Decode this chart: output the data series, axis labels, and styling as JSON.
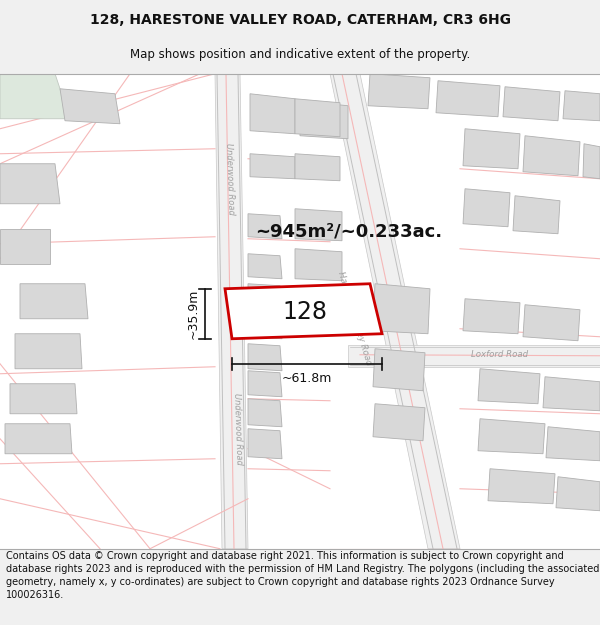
{
  "title": "128, HARESTONE VALLEY ROAD, CATERHAM, CR3 6HG",
  "subtitle": "Map shows position and indicative extent of the property.",
  "footer": "Contains OS data © Crown copyright and database right 2021. This information is subject to Crown copyright and database rights 2023 and is reproduced with the permission of HM Land Registry. The polygons (including the associated geometry, namely x, y co-ordinates) are subject to Crown copyright and database rights 2023 Ordnance Survey 100026316.",
  "area_label": "~945m²/~0.233ac.",
  "width_label": "~61.8m",
  "height_label": "~35.9m",
  "plot_number": "128",
  "bg_color": "#f0f0f0",
  "map_bg": "#ffffff",
  "building_fill": "#d8d8d8",
  "building_edge": "#b0b0b0",
  "road_fill": "#ffffff",
  "road_line_color": "#f5b8b8",
  "road_gray_fill": "#e8e8e8",
  "road_gray_edge": "#c8c8c8",
  "property_color": "#cc0000",
  "road_text_color": "#a0a0a0",
  "title_fontsize": 10,
  "subtitle_fontsize": 9,
  "footer_fontsize": 7
}
